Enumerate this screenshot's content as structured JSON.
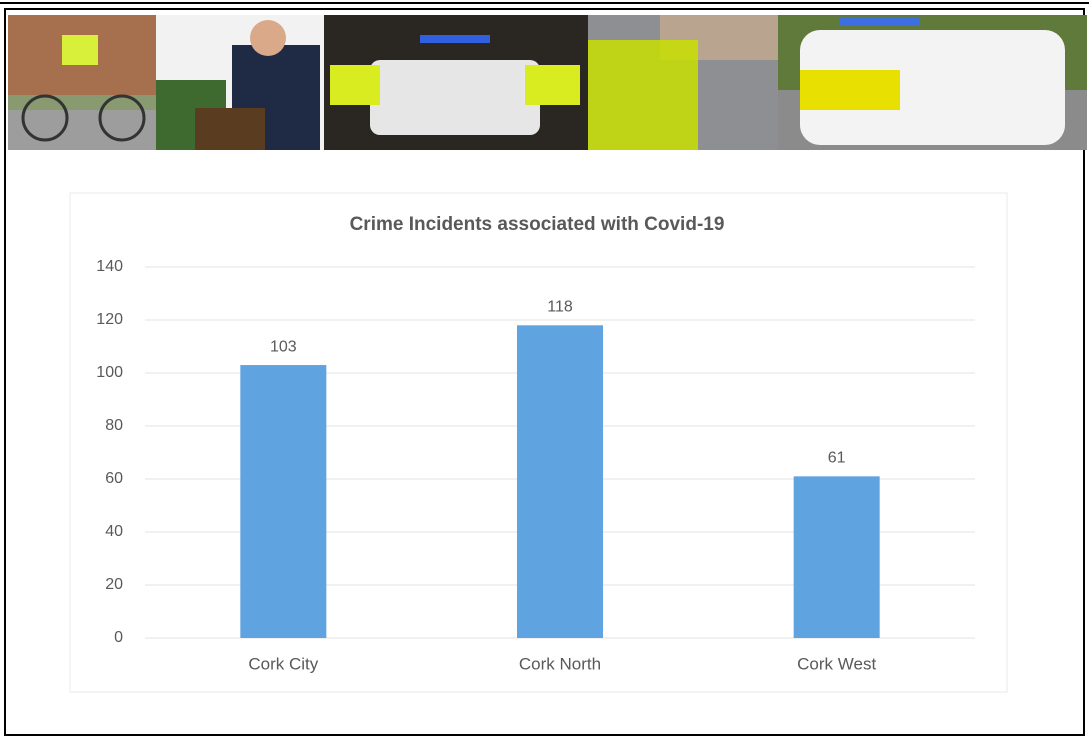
{
  "chart_data": {
    "type": "bar",
    "title": "Crime Incidents associated with Covid-19",
    "categories": [
      "Cork City",
      "Cork North",
      "Cork West"
    ],
    "values": [
      103,
      118,
      61
    ],
    "color": "#5fa3e0",
    "ylim": [
      0,
      140
    ],
    "yticks": [
      0,
      20,
      40,
      60,
      80,
      100,
      120,
      140
    ],
    "grid": true
  }
}
